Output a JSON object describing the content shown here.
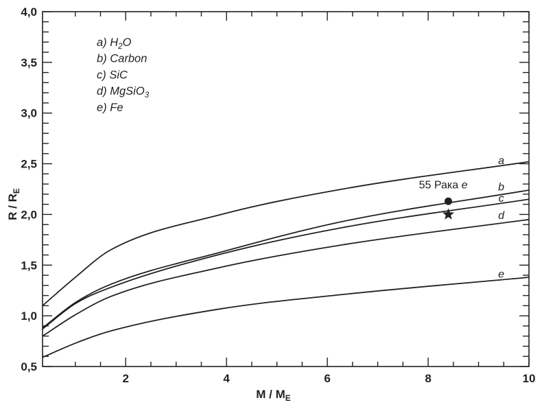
{
  "figure": {
    "background": "#ffffff",
    "ink_color": "#231f20"
  },
  "chart_data": {
    "type": "line",
    "title": "",
    "xlabel": {
      "segments": [
        {
          "text": "M / M"
        },
        {
          "text": "E",
          "sub": true
        }
      ]
    },
    "ylabel": {
      "segments": [
        {
          "text": "R / R"
        },
        {
          "text": "E",
          "sub": true
        }
      ]
    },
    "xlim": [
      0.35,
      10
    ],
    "ylim": [
      0.5,
      4.0
    ],
    "grid": false,
    "legend_position": "top-left",
    "x_ticks": {
      "major": [
        {
          "v": 2,
          "label": "2"
        },
        {
          "v": 4,
          "label": "4"
        },
        {
          "v": 6,
          "label": "6"
        },
        {
          "v": 8,
          "label": "8"
        },
        {
          "v": 10,
          "label": "10"
        }
      ],
      "minor_step": 0.5,
      "minor_start": 1.0
    },
    "y_ticks": {
      "major": [
        {
          "v": 0.5,
          "label": "0,5"
        },
        {
          "v": 1.0,
          "label": "1,0"
        },
        {
          "v": 1.5,
          "label": "1,5"
        },
        {
          "v": 2.0,
          "label": "2,0"
        },
        {
          "v": 2.5,
          "label": "2,5"
        },
        {
          "v": 3.0,
          "label": "3,0"
        },
        {
          "v": 3.5,
          "label": "3,5"
        },
        {
          "v": 4.0,
          "label": "4,0"
        }
      ],
      "minor_step": 0.1
    },
    "x_shared": [
      0.35,
      1.0,
      1.7,
      3.9,
      6.3,
      10
    ],
    "series": [
      {
        "key": "a",
        "name": "H2O",
        "legend_segments": [
          {
            "text": "a) H"
          },
          {
            "text": "2",
            "sub": true
          },
          {
            "text": "O"
          }
        ],
        "y": [
          1.1,
          1.38,
          1.65,
          2.0,
          2.25,
          2.52
        ],
        "curve_label": "a",
        "label_pos": {
          "x": 9.45,
          "y": 2.53
        }
      },
      {
        "key": "b",
        "name": "Carbon",
        "legend_segments": [
          {
            "text": "b) Carbon"
          }
        ],
        "y": [
          0.88,
          1.13,
          1.31,
          1.63,
          1.93,
          2.24
        ],
        "curve_label": "b",
        "label_pos": {
          "x": 9.45,
          "y": 2.27
        }
      },
      {
        "key": "c",
        "name": "SiC",
        "legend_segments": [
          {
            "text": "c) SiC"
          }
        ],
        "y": [
          0.87,
          1.12,
          1.28,
          1.61,
          1.87,
          2.15
        ],
        "curve_label": "c",
        "label_pos": {
          "x": 9.45,
          "y": 2.16
        }
      },
      {
        "key": "d",
        "name": "MgSiO3",
        "legend_segments": [
          {
            "text": "d) MgSiO"
          },
          {
            "text": "3",
            "sub": true
          }
        ],
        "y": [
          0.8,
          1.01,
          1.19,
          1.48,
          1.7,
          1.95
        ],
        "curve_label": "d",
        "label_pos": {
          "x": 9.45,
          "y": 1.99
        }
      },
      {
        "key": "e",
        "name": "Fe",
        "legend_segments": [
          {
            "text": "e) Fe"
          }
        ],
        "y": [
          0.59,
          0.73,
          0.85,
          1.07,
          1.21,
          1.38
        ],
        "curve_label": "e",
        "label_pos": {
          "x": 9.45,
          "y": 1.41
        }
      }
    ],
    "annotation": {
      "label_segments": [
        {
          "text": "55 Рака "
        },
        {
          "text": "e",
          "italic": true
        }
      ],
      "label_pos": {
        "x": 8.3,
        "y": 2.29
      },
      "markers": [
        {
          "shape": "circle",
          "x": 8.4,
          "y": 2.13
        },
        {
          "shape": "star",
          "x": 8.4,
          "y": 2.01
        }
      ]
    }
  }
}
